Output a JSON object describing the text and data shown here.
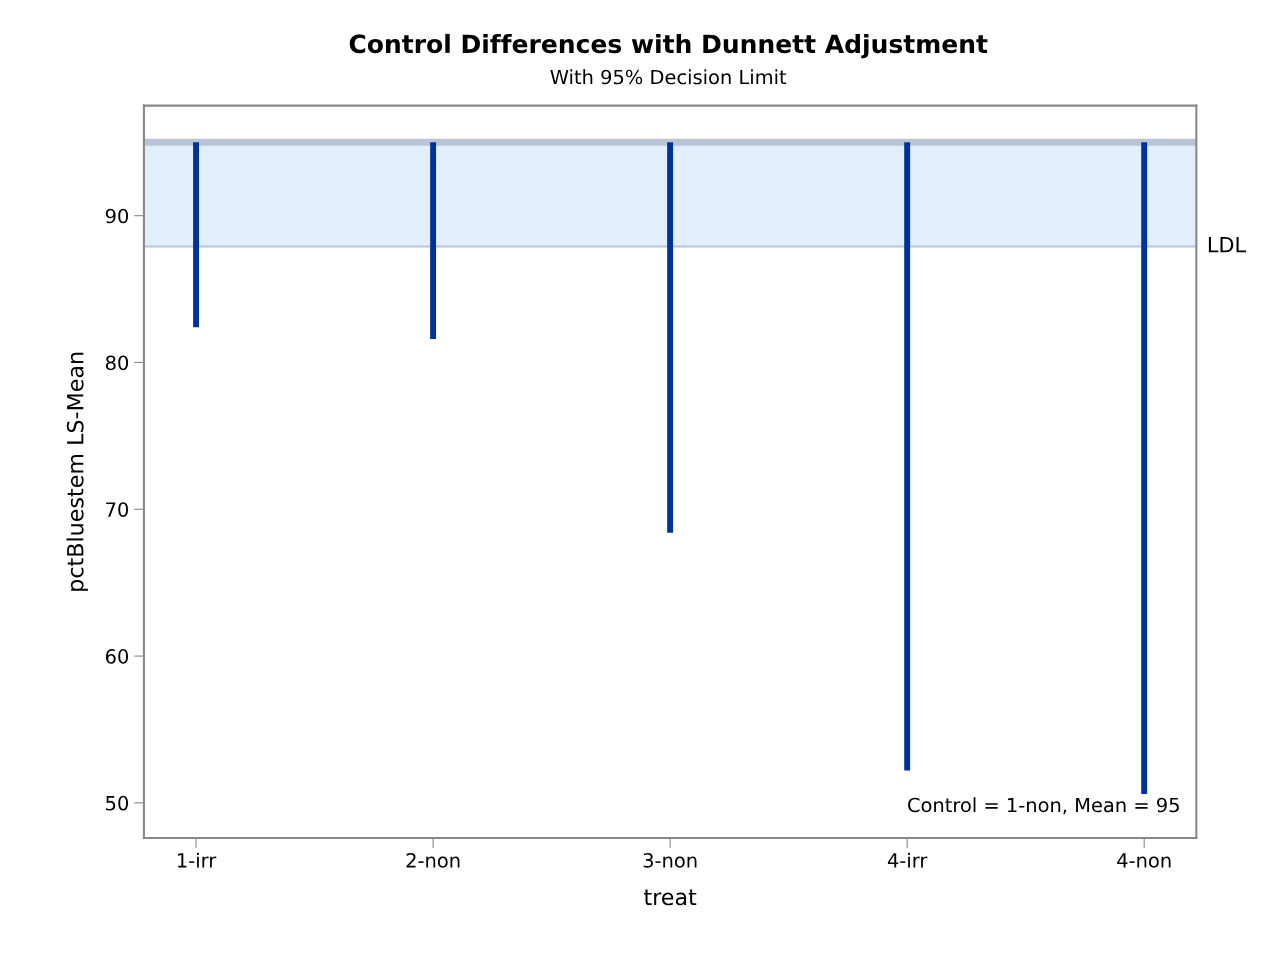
{
  "chart_data": {
    "type": "bar",
    "title": "Control Differences with Dunnett Adjustment",
    "subtitle": "With 95% Decision Limit",
    "xlabel": "treat",
    "ylabel": "pctBluestem LS-Mean",
    "categories": [
      "1-irr",
      "2-non",
      "3-non",
      "4-irr",
      "4-non"
    ],
    "base": [
      95,
      95,
      95,
      95,
      95
    ],
    "values": [
      -12.6,
      -13.4,
      -26.6,
      -42.8,
      -44.4
    ],
    "color": "#003399",
    "ylim": [
      47.6,
      97.5
    ],
    "yticks": [
      50,
      60,
      70,
      80,
      90
    ],
    "ref_lines": [
      {
        "axis": "y",
        "value": 95,
        "color": "#b8c4d8"
      },
      {
        "axis": "y",
        "value": 87.9,
        "color": "#b8c4d8",
        "label": "LDL"
      }
    ],
    "bands": [
      {
        "axis": "y",
        "from": 87.9,
        "to": 95,
        "color": "#e3eefc"
      }
    ],
    "annotations": [
      "Control = 1-non, Mean = 95"
    ],
    "grid": false,
    "legend": false
  }
}
